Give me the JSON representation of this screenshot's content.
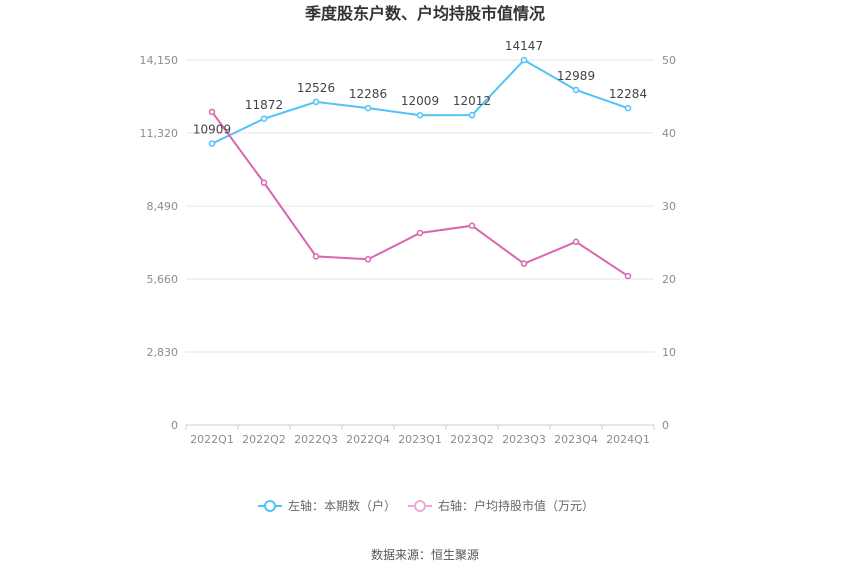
{
  "chart_data": {
    "type": "line",
    "title": "季度股东户数、户均持股市值情况",
    "categories": [
      "2022Q1",
      "2022Q2",
      "2022Q3",
      "2022Q4",
      "2023Q1",
      "2023Q2",
      "2023Q3",
      "2023Q4",
      "2024Q1"
    ],
    "series": [
      {
        "name": "左轴：本期数（户）",
        "axis": "left",
        "color": "#4fc3f7",
        "values": [
          10909,
          11872,
          12526,
          12286,
          12009,
          12012,
          14147,
          12989,
          12284
        ],
        "labels": [
          "10909",
          "11872",
          "12526",
          "12286",
          "12009",
          "12012",
          "14147",
          "12989",
          "12284"
        ]
      },
      {
        "name": "右轴：户均持股市值（万元）",
        "axis": "right",
        "color": "#d966b0",
        "values": [
          42.9,
          33.2,
          23.1,
          22.7,
          26.3,
          27.3,
          22.1,
          25.1,
          20.4
        ]
      }
    ],
    "left_axis": {
      "ylim": [
        0,
        14150
      ],
      "ticks": [
        "0",
        "2,830",
        "5,660",
        "8,490",
        "11,320",
        "14,150"
      ],
      "tick_values": [
        0,
        2830,
        5660,
        8490,
        11320,
        14150
      ]
    },
    "right_axis": {
      "ylim": [
        0,
        50
      ],
      "ticks": [
        "0",
        "10",
        "20",
        "30",
        "40",
        "50"
      ],
      "tick_values": [
        0,
        10,
        20,
        30,
        40,
        50
      ]
    },
    "grid": true,
    "legend_position": "bottom",
    "source": "数据来源：恒生聚源"
  }
}
